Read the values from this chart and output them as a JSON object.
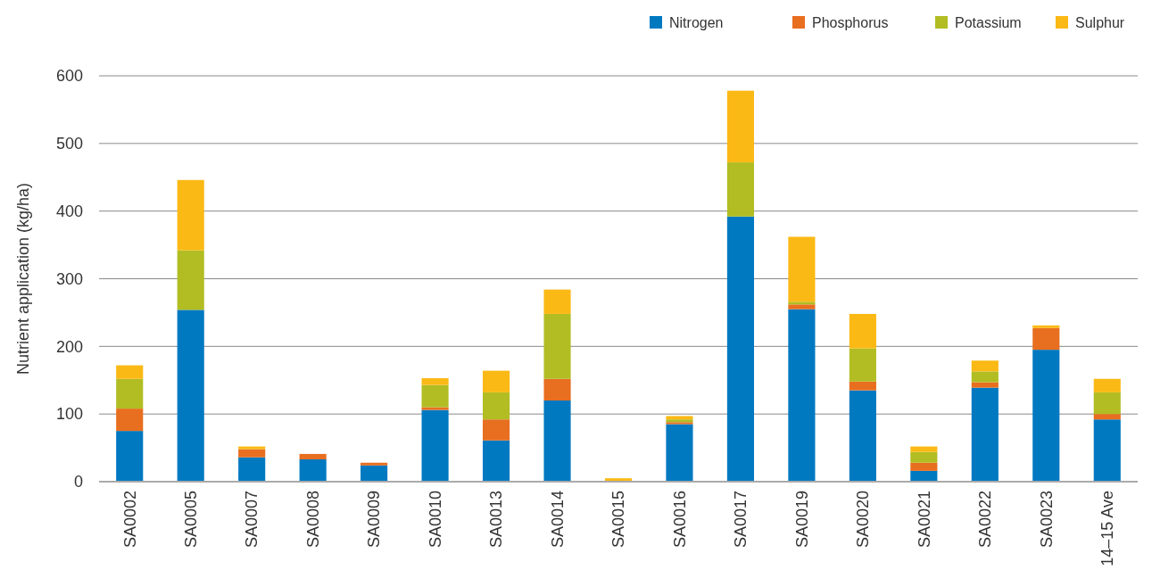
{
  "chart_data": {
    "type": "bar",
    "stacked": true,
    "ylabel": "Nutrient application (kg/ha)",
    "categories": [
      "SA0002",
      "SA0005",
      "SA0007",
      "SA0008",
      "SA0009",
      "SA0010",
      "SA0013",
      "SA0014",
      "SA0015",
      "SA0016",
      "SA0017",
      "SA0019",
      "SA0020",
      "SA0021",
      "SA0022",
      "SA0023",
      "14–15 Ave"
    ],
    "series": [
      {
        "name": "Nitrogen",
        "color": "#0079c1",
        "values": [
          75,
          254,
          36,
          33,
          24,
          106,
          61,
          120,
          0,
          85,
          392,
          255,
          135,
          16,
          139,
          195,
          92
        ]
      },
      {
        "name": "Phosphorus",
        "color": "#e86e20",
        "values": [
          33,
          0,
          12,
          8,
          4,
          4,
          31,
          32,
          0,
          3,
          0,
          7,
          13,
          12,
          8,
          32,
          8
        ]
      },
      {
        "name": "Potassium",
        "color": "#b1bd22",
        "values": [
          44,
          88,
          0,
          0,
          0,
          33,
          40,
          96,
          0,
          4,
          80,
          4,
          49,
          16,
          16,
          0,
          32
        ]
      },
      {
        "name": "Sulphur",
        "color": "#fbb915",
        "values": [
          20,
          104,
          4,
          0,
          0,
          10,
          32,
          36,
          5,
          5,
          106,
          96,
          51,
          8,
          16,
          4,
          20
        ]
      }
    ],
    "ylim": [
      0,
      600
    ],
    "yticks": [
      0,
      100,
      200,
      300,
      400,
      500,
      600
    ],
    "grid": "y",
    "legend": "top right"
  }
}
